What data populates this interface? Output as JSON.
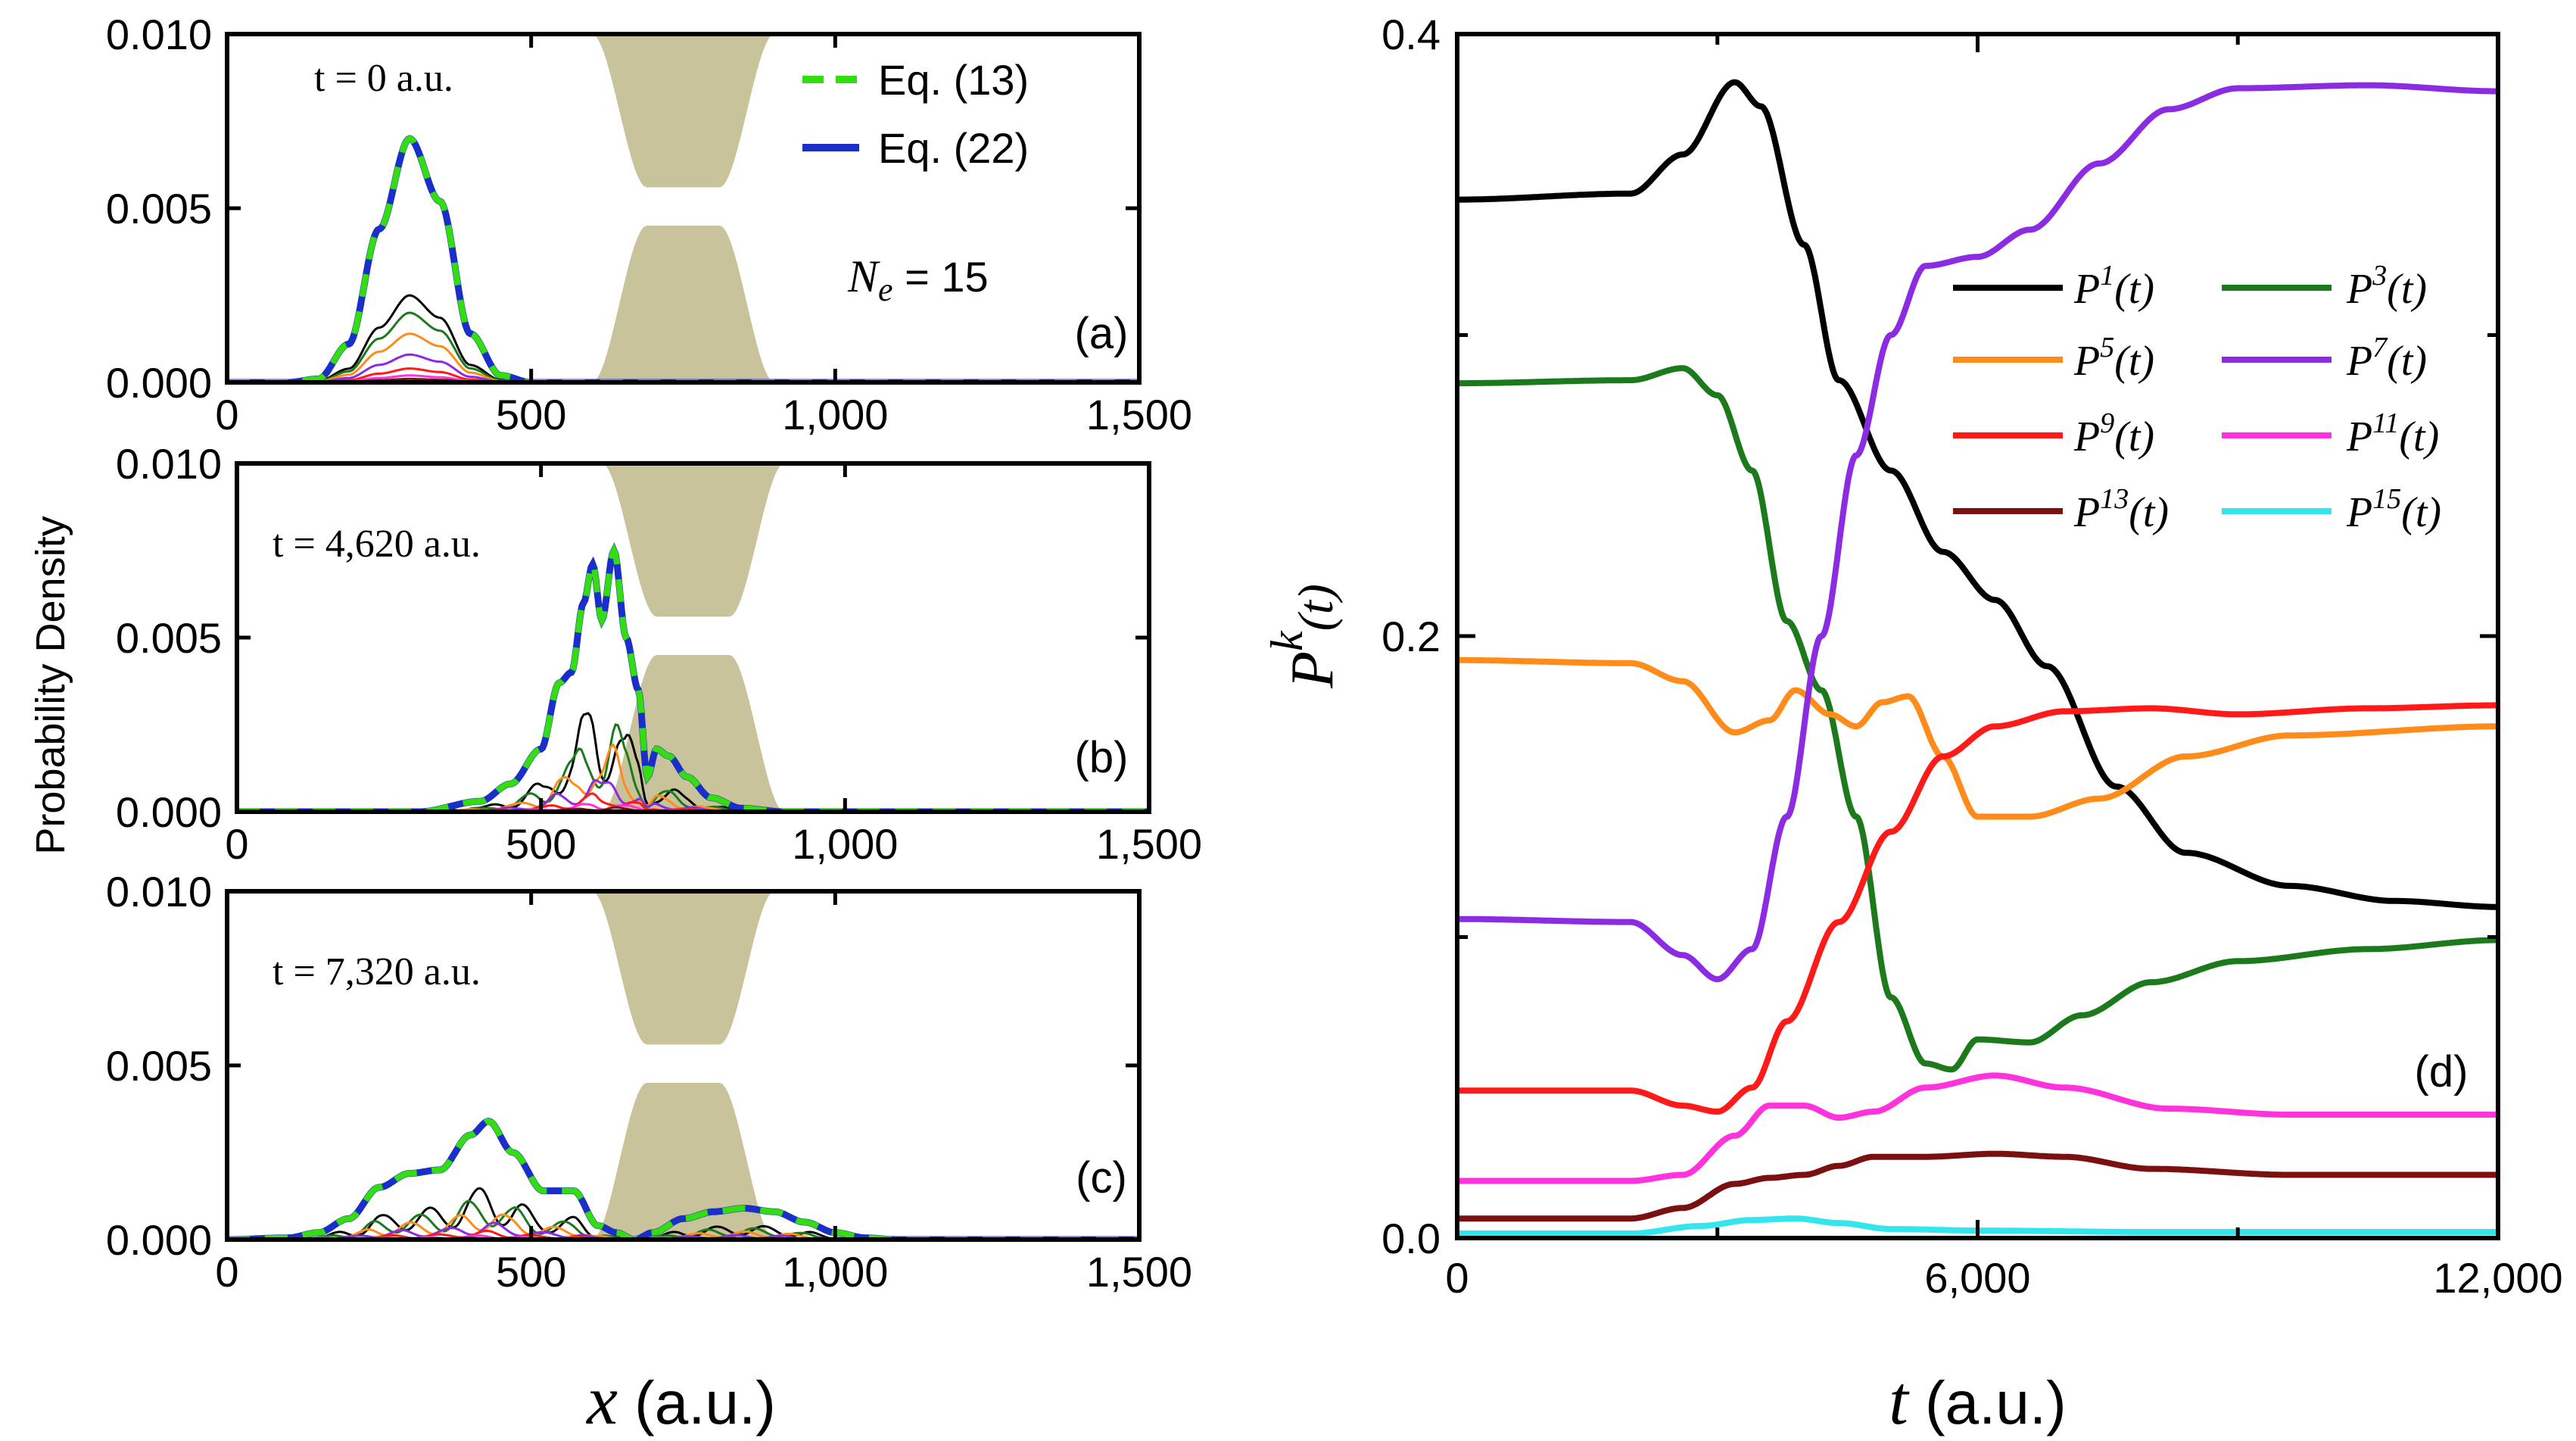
{
  "chart_data": [
    {
      "type": "line",
      "panel": "(a)",
      "time_label": "t = 0 a.u.",
      "ne_label_sym": "N",
      "ne_label_sub": "e",
      "ne_label_val": " = 15",
      "xlim": [
        0,
        1500
      ],
      "ylim": [
        0,
        0.01
      ],
      "xticks": [
        "0",
        "500",
        "1,000",
        "1,500"
      ],
      "yticks": [
        "0.000",
        "0.005",
        "0.010"
      ],
      "legend": [
        {
          "label": "Eq. (13)",
          "color": "#33dd11",
          "style": "dashed"
        },
        {
          "label": "Eq. (22)",
          "color": "#1a2ec8",
          "style": "solid"
        }
      ],
      "barrier": {
        "color": "#c8c39a",
        "x_range": [
          600,
          900
        ]
      },
      "total_density": [
        [
          0,
          0
        ],
        [
          100,
          0
        ],
        [
          150,
          0.0001
        ],
        [
          200,
          0.0011
        ],
        [
          250,
          0.0044
        ],
        [
          300,
          0.007
        ],
        [
          350,
          0.0052
        ],
        [
          400,
          0.0014
        ],
        [
          450,
          0.0002
        ],
        [
          500,
          0
        ],
        [
          1500,
          0
        ]
      ],
      "components": [
        {
          "color": "#000000",
          "peak": 0.0025
        },
        {
          "color": "#1c7a1c",
          "peak": 0.002
        },
        {
          "color": "#ff8c1a",
          "peak": 0.0014
        },
        {
          "color": "#8b2be2",
          "peak": 0.0008
        },
        {
          "color": "#ff1a1a",
          "peak": 0.0004
        },
        {
          "color": "#ff33dd",
          "peak": 0.0002
        },
        {
          "color": "#7a1010",
          "peak": 0.0001
        }
      ]
    },
    {
      "type": "line",
      "panel": "(b)",
      "time_label": "t = 4,620 a.u.",
      "xlim": [
        0,
        1500
      ],
      "ylim": [
        0,
        0.01
      ],
      "xticks": [
        "0",
        "500",
        "1,000",
        "1,500"
      ],
      "yticks": [
        "0.000",
        "0.005",
        "0.010"
      ],
      "total_density": [
        [
          0,
          0
        ],
        [
          300,
          0
        ],
        [
          400,
          0.0003
        ],
        [
          450,
          0.0008
        ],
        [
          500,
          0.0018
        ],
        [
          530,
          0.0037
        ],
        [
          550,
          0.004
        ],
        [
          570,
          0.006
        ],
        [
          585,
          0.0071
        ],
        [
          600,
          0.0055
        ],
        [
          620,
          0.0075
        ],
        [
          640,
          0.005
        ],
        [
          660,
          0.0035
        ],
        [
          675,
          0.001
        ],
        [
          690,
          0.0018
        ],
        [
          710,
          0.0016
        ],
        [
          740,
          0.001
        ],
        [
          780,
          0.0004
        ],
        [
          830,
          0.0001
        ],
        [
          900,
          0
        ],
        [
          1500,
          0
        ]
      ]
    },
    {
      "type": "line",
      "panel": "(c)",
      "time_label": "t = 7,320 a.u.",
      "xlim": [
        0,
        1500
      ],
      "ylim": [
        0,
        0.01
      ],
      "xticks": [
        "0",
        "500",
        "1,000",
        "1,500"
      ],
      "yticks": [
        "0.000",
        "0.005",
        "0.010"
      ],
      "total_density": [
        [
          0,
          0
        ],
        [
          100,
          5e-05
        ],
        [
          150,
          0.0002
        ],
        [
          200,
          0.0006
        ],
        [
          250,
          0.0015
        ],
        [
          300,
          0.0019
        ],
        [
          350,
          0.002
        ],
        [
          400,
          0.003
        ],
        [
          430,
          0.0034
        ],
        [
          470,
          0.0025
        ],
        [
          520,
          0.0014
        ],
        [
          570,
          0.0014
        ],
        [
          610,
          0.0004
        ],
        [
          640,
          0.0002
        ],
        [
          670,
          0
        ],
        [
          700,
          0.0002
        ],
        [
          750,
          0.0006
        ],
        [
          800,
          0.0008
        ],
        [
          850,
          0.0009
        ],
        [
          900,
          0.0008
        ],
        [
          950,
          0.0005
        ],
        [
          1000,
          0.0002
        ],
        [
          1050,
          5e-05
        ],
        [
          1100,
          0
        ],
        [
          1500,
          0
        ]
      ]
    },
    {
      "type": "line",
      "panel": "(d)",
      "xlim": [
        0,
        12000
      ],
      "ylim": [
        0,
        0.4
      ],
      "xticks": [
        "0",
        "6,000",
        "12,000"
      ],
      "yticks": [
        "0.0",
        "0.2",
        "0.4"
      ],
      "xlabel_sym": "t",
      "xlabel_unit": " (a.u.)",
      "ylabel_sym": "P",
      "ylabel_sup": "k",
      "ylabel_arg": "(t)",
      "series": [
        {
          "name": "P",
          "sup": "1",
          "color": "#000000",
          "points": [
            [
              0,
              0.345
            ],
            [
              2000,
              0.347
            ],
            [
              2600,
              0.36
            ],
            [
              3200,
              0.384
            ],
            [
              3500,
              0.376
            ],
            [
              4000,
              0.33
            ],
            [
              4400,
              0.285
            ],
            [
              5000,
              0.255
            ],
            [
              5600,
              0.228
            ],
            [
              6200,
              0.212
            ],
            [
              6800,
              0.19
            ],
            [
              7600,
              0.15
            ],
            [
              8400,
              0.128
            ],
            [
              9600,
              0.117
            ],
            [
              10800,
              0.112
            ],
            [
              12000,
              0.11
            ]
          ]
        },
        {
          "name": "P",
          "sup": "3",
          "color": "#1c7a1c",
          "points": [
            [
              0,
              0.284
            ],
            [
              2000,
              0.285
            ],
            [
              2600,
              0.289
            ],
            [
              3000,
              0.28
            ],
            [
              3400,
              0.255
            ],
            [
              3800,
              0.205
            ],
            [
              4200,
              0.182
            ],
            [
              4600,
              0.14
            ],
            [
              5000,
              0.08
            ],
            [
              5400,
              0.058
            ],
            [
              5700,
              0.056
            ],
            [
              6000,
              0.066
            ],
            [
              6600,
              0.065
            ],
            [
              7200,
              0.074
            ],
            [
              8000,
              0.085
            ],
            [
              9000,
              0.092
            ],
            [
              10500,
              0.096
            ],
            [
              12000,
              0.099
            ]
          ]
        },
        {
          "name": "P",
          "sup": "5",
          "color": "#ff8c1a",
          "points": [
            [
              0,
              0.192
            ],
            [
              2000,
              0.191
            ],
            [
              2600,
              0.185
            ],
            [
              3200,
              0.168
            ],
            [
              3600,
              0.172
            ],
            [
              3900,
              0.182
            ],
            [
              4300,
              0.174
            ],
            [
              4600,
              0.17
            ],
            [
              4900,
              0.178
            ],
            [
              5200,
              0.18
            ],
            [
              5600,
              0.16
            ],
            [
              6000,
              0.14
            ],
            [
              6600,
              0.14
            ],
            [
              7400,
              0.146
            ],
            [
              8400,
              0.16
            ],
            [
              9600,
              0.167
            ],
            [
              12000,
              0.17
            ]
          ]
        },
        {
          "name": "P",
          "sup": "7",
          "color": "#8b2be2",
          "points": [
            [
              0,
              0.106
            ],
            [
              2000,
              0.105
            ],
            [
              2600,
              0.094
            ],
            [
              3000,
              0.086
            ],
            [
              3400,
              0.096
            ],
            [
              3800,
              0.14
            ],
            [
              4200,
              0.2
            ],
            [
              4600,
              0.26
            ],
            [
              5000,
              0.3
            ],
            [
              5400,
              0.323
            ],
            [
              6000,
              0.326
            ],
            [
              6600,
              0.335
            ],
            [
              7400,
              0.357
            ],
            [
              8200,
              0.375
            ],
            [
              9000,
              0.382
            ],
            [
              10500,
              0.383
            ],
            [
              12000,
              0.381
            ]
          ]
        },
        {
          "name": "P",
          "sup": "9",
          "color": "#ff1a1a",
          "points": [
            [
              0,
              0.049
            ],
            [
              2000,
              0.049
            ],
            [
              2600,
              0.044
            ],
            [
              3000,
              0.042
            ],
            [
              3400,
              0.05
            ],
            [
              3800,
              0.072
            ],
            [
              4400,
              0.105
            ],
            [
              5000,
              0.135
            ],
            [
              5600,
              0.16
            ],
            [
              6200,
              0.17
            ],
            [
              7000,
              0.175
            ],
            [
              8000,
              0.176
            ],
            [
              9000,
              0.174
            ],
            [
              10500,
              0.176
            ],
            [
              12000,
              0.177
            ]
          ]
        },
        {
          "name": "P",
          "sup": "11",
          "color": "#ff33dd",
          "points": [
            [
              0,
              0.019
            ],
            [
              2000,
              0.019
            ],
            [
              2600,
              0.021
            ],
            [
              3200,
              0.034
            ],
            [
              3600,
              0.044
            ],
            [
              4000,
              0.044
            ],
            [
              4400,
              0.04
            ],
            [
              4800,
              0.042
            ],
            [
              5400,
              0.05
            ],
            [
              6200,
              0.054
            ],
            [
              7000,
              0.05
            ],
            [
              8200,
              0.043
            ],
            [
              9600,
              0.041
            ],
            [
              12000,
              0.041
            ]
          ]
        },
        {
          "name": "P",
          "sup": "13",
          "color": "#7a1010",
          "points": [
            [
              0,
              0.0065
            ],
            [
              2000,
              0.0065
            ],
            [
              2600,
              0.01
            ],
            [
              3200,
              0.018
            ],
            [
              3600,
              0.02
            ],
            [
              4000,
              0.021
            ],
            [
              4400,
              0.024
            ],
            [
              4800,
              0.027
            ],
            [
              5400,
              0.027
            ],
            [
              6200,
              0.028
            ],
            [
              7000,
              0.027
            ],
            [
              8000,
              0.023
            ],
            [
              9600,
              0.021
            ],
            [
              12000,
              0.021
            ]
          ]
        },
        {
          "name": "P",
          "sup": "15",
          "color": "#33e6ee",
          "points": [
            [
              0,
              0.0015
            ],
            [
              2000,
              0.0015
            ],
            [
              2800,
              0.004
            ],
            [
              3400,
              0.006
            ],
            [
              3900,
              0.0065
            ],
            [
              4400,
              0.005
            ],
            [
              5000,
              0.003
            ],
            [
              6000,
              0.0025
            ],
            [
              8000,
              0.002
            ],
            [
              12000,
              0.002
            ]
          ]
        }
      ]
    }
  ],
  "shared_labels": {
    "x_sym": "x",
    "x_unit": " (a.u.)",
    "y_label": "Probability Density"
  }
}
